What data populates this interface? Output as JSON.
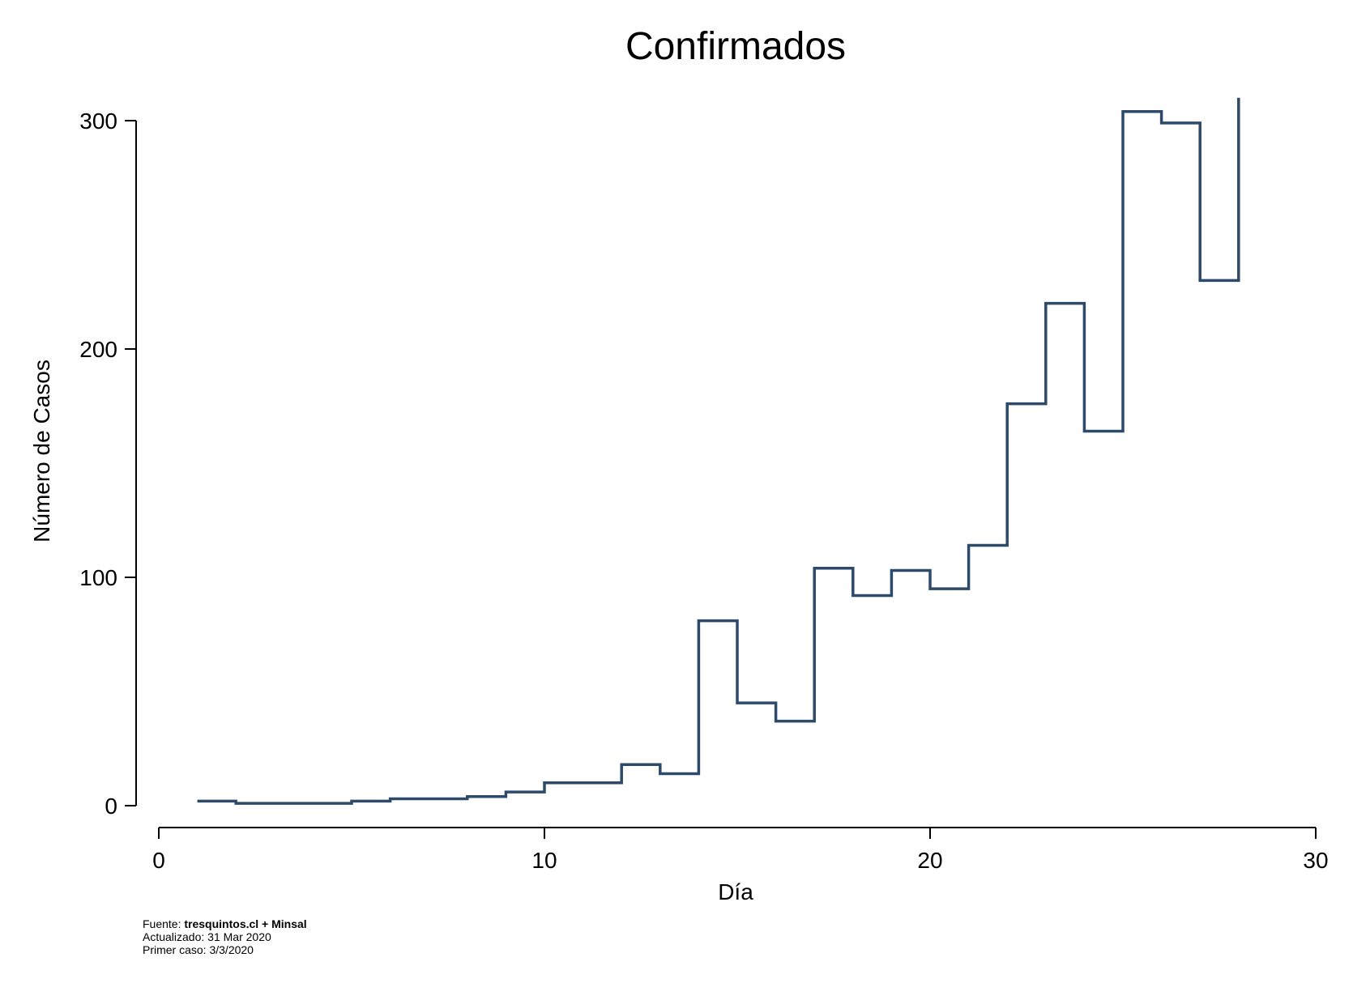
{
  "chart_data": {
    "type": "line",
    "step": true,
    "title": "Confirmados",
    "xlabel": "Día",
    "ylabel": "Número de Casos",
    "xlim": [
      0,
      30
    ],
    "ylim": [
      0,
      300
    ],
    "xticks": [
      0,
      10,
      20,
      30
    ],
    "yticks": [
      0,
      100,
      200,
      300
    ],
    "grid": false,
    "line_color": "#2e4a6b",
    "x": [
      1,
      2,
      3,
      4,
      5,
      6,
      7,
      8,
      9,
      10,
      11,
      12,
      13,
      14,
      15,
      16,
      17,
      18,
      19,
      20,
      21,
      22,
      23,
      24,
      25,
      26,
      27,
      28
    ],
    "values": [
      2,
      1,
      1,
      1,
      2,
      3,
      3,
      4,
      6,
      10,
      10,
      18,
      14,
      81,
      45,
      37,
      104,
      92,
      103,
      95,
      114,
      176,
      220,
      164,
      304,
      299,
      230,
      310
    ]
  },
  "footnote": {
    "source_prefix": "Fuente: ",
    "source_value": "tresquintos.cl + Minsal",
    "updated": "Actualizado: 31 Mar 2020",
    "first_case": "Primer caso: 3/3/2020"
  }
}
